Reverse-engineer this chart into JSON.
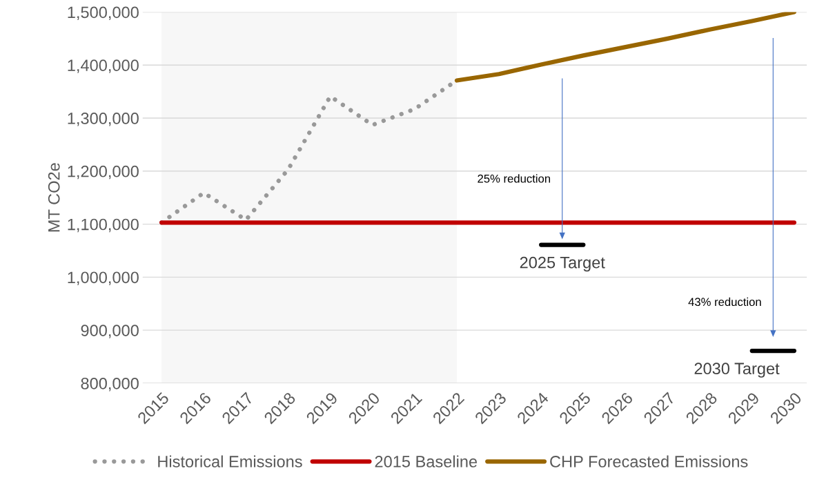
{
  "chart_data": {
    "type": "line",
    "ylabel": "MT CO2e",
    "x": [
      2015,
      2016,
      2017,
      2018,
      2019,
      2020,
      2021,
      2022
    ],
    "series": [
      {
        "name": "Historical Emissions",
        "color": "#999999",
        "line_style": "dotted",
        "values": [
          1103000,
          1159000,
          1108000,
          1203000,
          1341000,
          1287000,
          1317000,
          1371000
        ]
      },
      {
        "name": "2015 Baseline",
        "color": "#c00000",
        "line_style": "solid",
        "x": [
          2015,
          2030
        ],
        "values": [
          1103000,
          1103000
        ]
      },
      {
        "name": "CHP Forecasted Emissions",
        "color": "#996600",
        "line_style": "solid",
        "x": [
          2022,
          2023,
          2024,
          2025,
          2026,
          2027,
          2028,
          2029,
          2030
        ],
        "values": [
          1371000,
          1383000,
          1401000,
          1418000,
          1434000,
          1450000,
          1467000,
          1483000,
          1500000
        ]
      },
      {
        "color": "#000000",
        "line_style": "solid",
        "x": [
          2024,
          2025
        ],
        "values": [
          1061000,
          1061000
        ]
      },
      {
        "color": "#000000",
        "line_style": "solid",
        "x": [
          2029,
          2030
        ],
        "values": [
          861000,
          861000
        ]
      }
    ],
    "annotations": [
      "25% reduction",
      "43% reduction",
      {
        "text": "2025 Target",
        "x": 2024.5,
        "y": 1061000
      },
      {
        "text": "2030 Target",
        "x": 2029.5,
        "y": 861000
      }
    ],
    "bands": [
      {
        "axis": "x",
        "from": 2015,
        "to": 2022,
        "color": "#f7f7f7"
      }
    ],
    "xlim": [
      2014.55,
      2030.3
    ],
    "xticks": [
      2015,
      2016,
      2017,
      2018,
      2019,
      2020,
      2021,
      2022,
      2023,
      2024,
      2025,
      2026,
      2027,
      2028,
      2029,
      2030
    ],
    "ylim": [
      800000,
      1500000
    ],
    "yticks": [
      {
        "value": 800000,
        "label": "800,000"
      },
      {
        "value": 900000,
        "label": "900,000"
      },
      {
        "value": 1000000,
        "label": "1,000,000"
      },
      {
        "value": 1100000,
        "label": "1,100,000"
      },
      {
        "value": 1200000,
        "label": "1,200,000"
      },
      {
        "value": 1300000,
        "label": "1,300,000"
      },
      {
        "value": 1400000,
        "label": "1,400,000"
      },
      {
        "value": 1500000,
        "label": "1,500,000"
      }
    ],
    "grid": "y",
    "legend": "bottom"
  }
}
